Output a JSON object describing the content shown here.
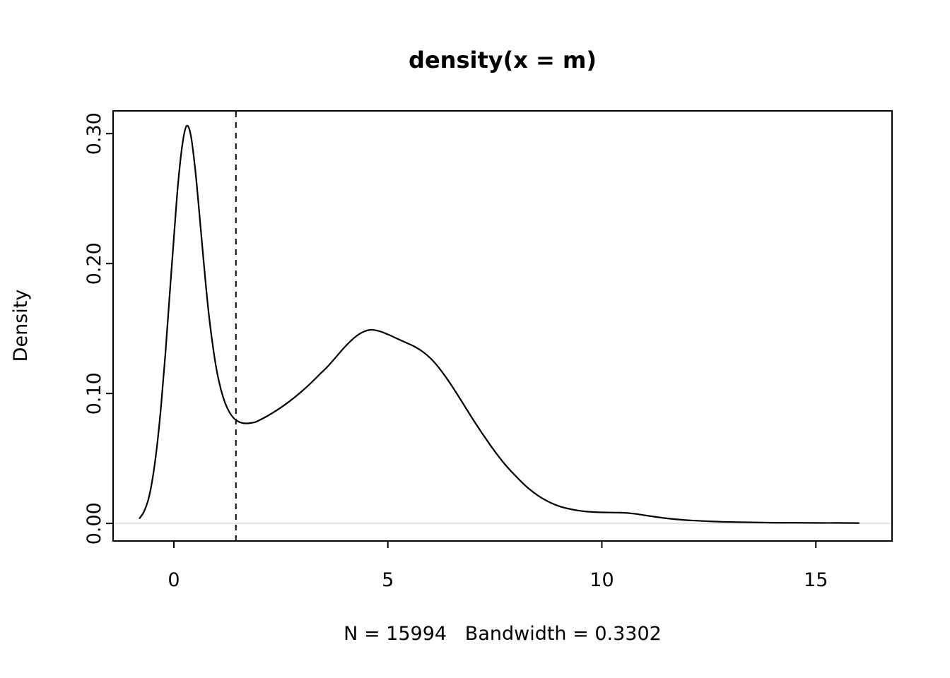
{
  "chart_data": {
    "type": "line",
    "title": "density(x = m)",
    "xlabel": "N = 15994   Bandwidth = 0.3302",
    "ylabel": "Density",
    "n": 15994,
    "bandwidth": 0.3302,
    "xlim": [
      -1.42,
      16.78
    ],
    "ylim": [
      -0.0135,
      0.3175
    ],
    "x_ticks": [
      0,
      5,
      10,
      15
    ],
    "x_tick_labels": [
      "0",
      "5",
      "10",
      "15"
    ],
    "y_ticks": [
      0.0,
      0.1,
      0.2,
      0.3
    ],
    "y_tick_labels": [
      "0.00",
      "0.10",
      "0.20",
      "0.30"
    ],
    "grid": false,
    "legend": "none",
    "line_color": "#000000",
    "vline": {
      "x": 1.45,
      "style": "dashed",
      "color": "#000000"
    },
    "baseline": {
      "y": 0,
      "color": "#e3e3e3"
    },
    "series": [
      {
        "name": "density",
        "points": [
          [
            -0.8,
            0.004
          ],
          [
            -0.7,
            0.009
          ],
          [
            -0.6,
            0.018
          ],
          [
            -0.5,
            0.034
          ],
          [
            -0.4,
            0.058
          ],
          [
            -0.3,
            0.09
          ],
          [
            -0.2,
            0.13
          ],
          [
            -0.1,
            0.175
          ],
          [
            0.0,
            0.22
          ],
          [
            0.1,
            0.262
          ],
          [
            0.2,
            0.292
          ],
          [
            0.3,
            0.306
          ],
          [
            0.4,
            0.298
          ],
          [
            0.5,
            0.272
          ],
          [
            0.6,
            0.237
          ],
          [
            0.7,
            0.2
          ],
          [
            0.8,
            0.166
          ],
          [
            0.9,
            0.139
          ],
          [
            1.0,
            0.118
          ],
          [
            1.1,
            0.103
          ],
          [
            1.2,
            0.0925
          ],
          [
            1.3,
            0.0855
          ],
          [
            1.4,
            0.081
          ],
          [
            1.5,
            0.0785
          ],
          [
            1.6,
            0.0773
          ],
          [
            1.7,
            0.077
          ],
          [
            1.8,
            0.0773
          ],
          [
            1.9,
            0.078
          ],
          [
            2.0,
            0.0795
          ],
          [
            2.2,
            0.083
          ],
          [
            2.4,
            0.087
          ],
          [
            2.6,
            0.0915
          ],
          [
            2.8,
            0.0965
          ],
          [
            3.0,
            0.102
          ],
          [
            3.2,
            0.108
          ],
          [
            3.4,
            0.1145
          ],
          [
            3.6,
            0.121
          ],
          [
            3.8,
            0.1285
          ],
          [
            4.0,
            0.136
          ],
          [
            4.2,
            0.1425
          ],
          [
            4.4,
            0.147
          ],
          [
            4.6,
            0.149
          ],
          [
            4.8,
            0.148
          ],
          [
            5.0,
            0.1455
          ],
          [
            5.2,
            0.1425
          ],
          [
            5.4,
            0.1395
          ],
          [
            5.6,
            0.1365
          ],
          [
            5.8,
            0.1325
          ],
          [
            6.0,
            0.127
          ],
          [
            6.2,
            0.1195
          ],
          [
            6.4,
            0.1105
          ],
          [
            6.6,
            0.1005
          ],
          [
            6.8,
            0.09
          ],
          [
            7.0,
            0.0795
          ],
          [
            7.2,
            0.0695
          ],
          [
            7.4,
            0.06
          ],
          [
            7.6,
            0.051
          ],
          [
            7.8,
            0.043
          ],
          [
            8.0,
            0.036
          ],
          [
            8.2,
            0.0295
          ],
          [
            8.4,
            0.024
          ],
          [
            8.6,
            0.0195
          ],
          [
            8.8,
            0.016
          ],
          [
            9.0,
            0.0133
          ],
          [
            9.2,
            0.0115
          ],
          [
            9.4,
            0.0102
          ],
          [
            9.6,
            0.0093
          ],
          [
            9.8,
            0.0088
          ],
          [
            10.0,
            0.0085
          ],
          [
            10.2,
            0.0084
          ],
          [
            10.4,
            0.0083
          ],
          [
            10.6,
            0.008
          ],
          [
            10.8,
            0.0073
          ],
          [
            11.0,
            0.0063
          ],
          [
            11.2,
            0.0053
          ],
          [
            11.4,
            0.0044
          ],
          [
            11.6,
            0.0036
          ],
          [
            11.8,
            0.003
          ],
          [
            12.0,
            0.0025
          ],
          [
            12.4,
            0.0018
          ],
          [
            12.8,
            0.0013
          ],
          [
            13.2,
            0.001
          ],
          [
            13.6,
            0.0008
          ],
          [
            14.0,
            0.0006
          ],
          [
            14.5,
            0.0005
          ],
          [
            15.0,
            0.0004
          ],
          [
            15.5,
            0.0004
          ],
          [
            16.0,
            0.0003
          ]
        ]
      }
    ]
  }
}
